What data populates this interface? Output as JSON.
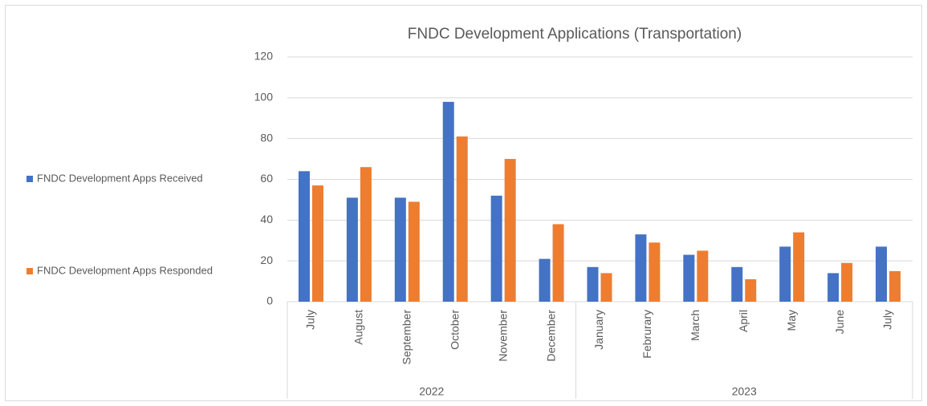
{
  "chart_data": {
    "type": "bar",
    "title": "FNDC Development Applications (Transportation)",
    "category_groups": [
      {
        "label": "2022",
        "categories": [
          "July",
          "August",
          "September",
          "October",
          "November",
          "December"
        ]
      },
      {
        "label": "2023",
        "categories": [
          "January",
          "Februrary",
          "March",
          "April",
          "May",
          "June",
          "July"
        ]
      }
    ],
    "series": [
      {
        "name": "FNDC Development Apps Received",
        "color": "#4472c4",
        "values": [
          64,
          51,
          51,
          98,
          52,
          21,
          17,
          33,
          23,
          17,
          27,
          14,
          27
        ]
      },
      {
        "name": "FNDC Development Apps Responded",
        "color": "#ed7d31",
        "values": [
          57,
          66,
          49,
          81,
          70,
          38,
          14,
          29,
          25,
          11,
          34,
          19,
          15
        ]
      }
    ],
    "ylim": [
      0,
      120
    ],
    "yticks": [
      0,
      20,
      40,
      60,
      80,
      100,
      120
    ],
    "grid": true,
    "legend": "left"
  }
}
